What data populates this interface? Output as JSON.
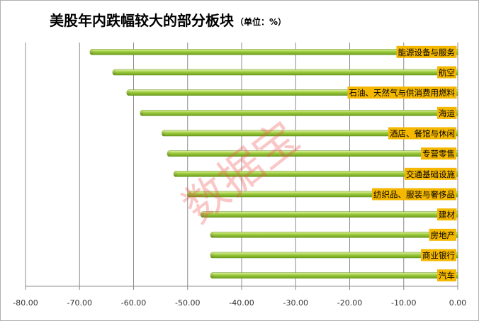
{
  "chart_data": {
    "type": "bar",
    "orientation": "horizontal",
    "title": "美股年内跌幅较大的部分板块",
    "subtitle": "（单位：%）",
    "categories": [
      "能源设备与服务",
      "航空",
      "石油、天然气与供消费用燃料",
      "海运",
      "酒店、餐馆与休闲",
      "专营零售",
      "交通基础设施",
      "纺织品、服装与奢侈品",
      "建材",
      "房地产",
      "商业银行",
      "汽车"
    ],
    "values": [
      -67.8,
      -63.6,
      -61.0,
      -58.5,
      -54.5,
      -53.5,
      -52.3,
      -49.8,
      -47.3,
      -45.5,
      -45.5,
      -45.5
    ],
    "xlim": [
      -80,
      0
    ],
    "x_ticks": [
      "-80.00",
      "-70.00",
      "-60.00",
      "-50.00",
      "-40.00",
      "-30.00",
      "-20.00",
      "-10.00",
      "0.00"
    ],
    "grid": "vertical",
    "bar_color": "#9bcb3c",
    "label_bg_color": "#f5b800"
  },
  "watermark": "数据宝"
}
